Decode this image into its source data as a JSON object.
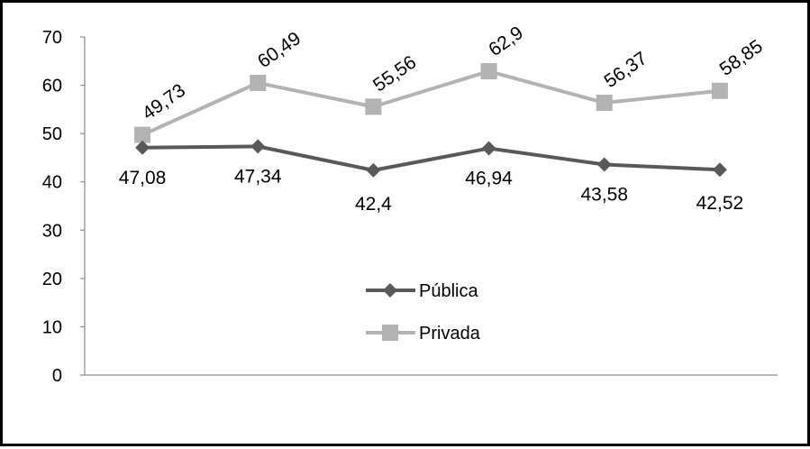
{
  "chart_data": {
    "type": "line",
    "categories": [
      "",
      "",
      "",
      "",
      "",
      ""
    ],
    "series": [
      {
        "name": "Pública",
        "values": [
          47.08,
          47.34,
          42.4,
          46.94,
          43.58,
          42.52
        ],
        "labels": [
          "47,08",
          "47,34",
          "42,4",
          "46,94",
          "43,58",
          "42,52"
        ],
        "color": "#595959",
        "marker": "diamond"
      },
      {
        "name": "Privada",
        "values": [
          49.73,
          60.49,
          55.56,
          62.9,
          56.37,
          58.85
        ],
        "labels": [
          "49,73",
          "60,49",
          "55,56",
          "62,9",
          "56,37",
          "58,85"
        ],
        "color": "#b3b3b3",
        "marker": "square"
      }
    ],
    "yticks": [
      "0",
      "10",
      "20",
      "30",
      "40",
      "50",
      "60",
      "70"
    ],
    "ylim": [
      0,
      70
    ],
    "grid": false,
    "legend": "center"
  }
}
